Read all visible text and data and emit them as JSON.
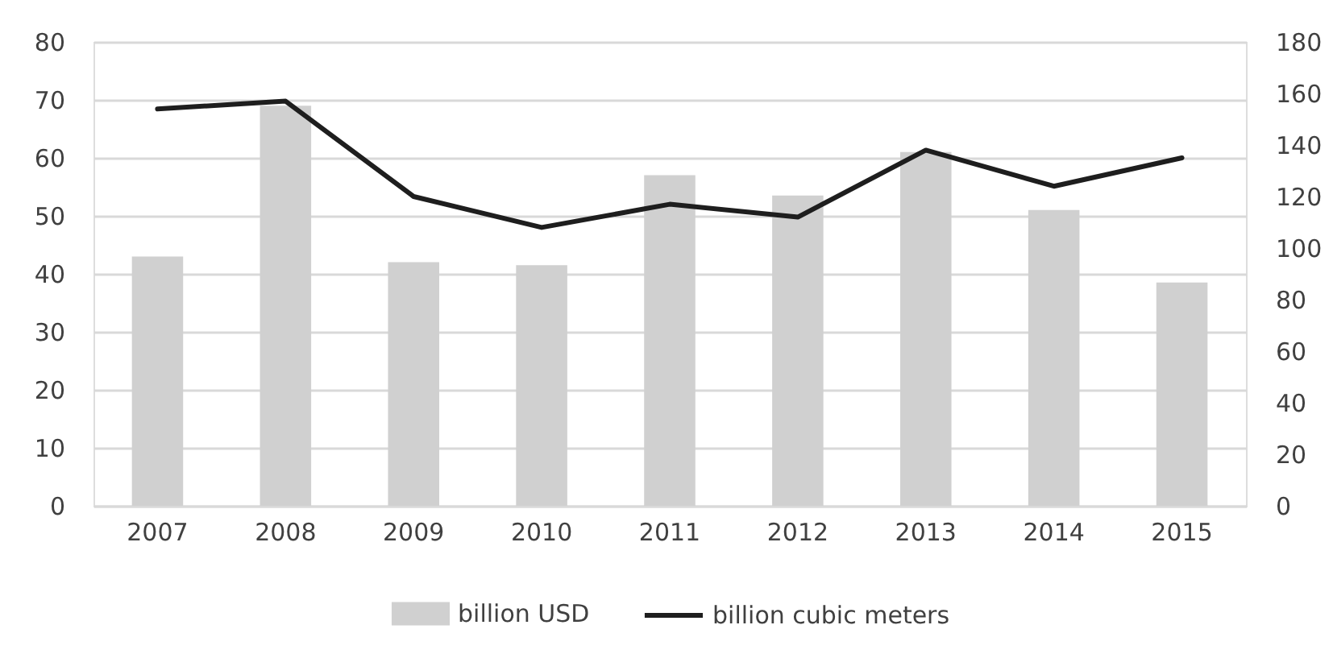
{
  "chart_data": {
    "type": "bar",
    "categories": [
      "2007",
      "2008",
      "2009",
      "2010",
      "2011",
      "2012",
      "2013",
      "2014",
      "2015"
    ],
    "series": [
      {
        "name": "billion USD",
        "color": "#d0d0d0",
        "values": [
          43,
          69,
          42,
          41.5,
          57,
          53.5,
          61,
          51,
          38.5
        ]
      },
      {
        "name": "billion cubic meters",
        "type": "line",
        "axis": "y2",
        "color": "#1e1e1e",
        "line_style": "solid",
        "values": [
          154,
          157,
          120,
          108,
          117,
          112,
          138,
          124,
          135
        ]
      }
    ],
    "ylim": [
      0,
      80
    ],
    "yticks": [
      0,
      10,
      20,
      30,
      40,
      50,
      60,
      70,
      80
    ],
    "y2lim": [
      0,
      180
    ],
    "y2ticks": [
      0,
      20,
      40,
      60,
      80,
      100,
      120,
      140,
      160,
      180
    ],
    "grid": "y",
    "legend": "bottom"
  }
}
